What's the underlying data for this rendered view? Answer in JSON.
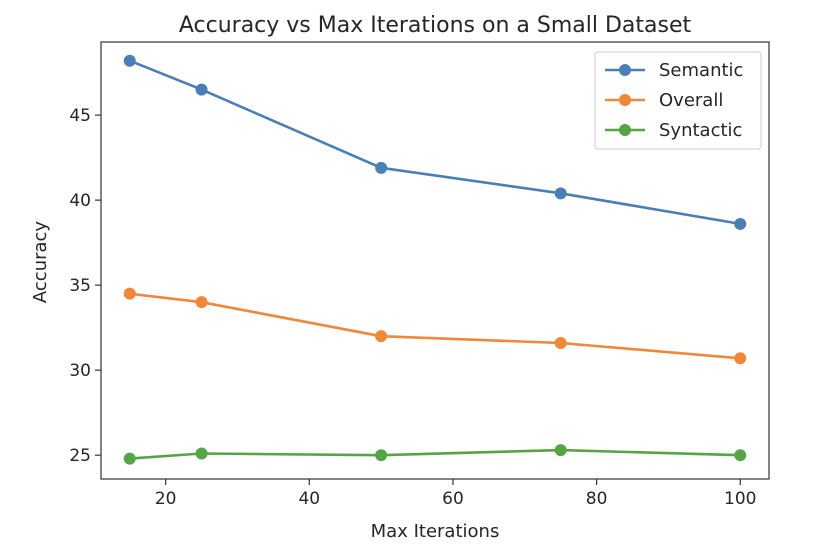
{
  "chart_data": {
    "type": "line",
    "title": "Accuracy vs Max Iterations on a Small Dataset",
    "xlabel": "Max Iterations",
    "ylabel": "Accuracy",
    "x": [
      15,
      25,
      50,
      75,
      100
    ],
    "xlim": [
      11,
      104
    ],
    "ylim": [
      23.6,
      49.3
    ],
    "xticks": [
      20,
      40,
      60,
      80,
      100
    ],
    "yticks": [
      25,
      30,
      35,
      40,
      45
    ],
    "grid": false,
    "legend_position": "top-right",
    "series": [
      {
        "name": "Semantic",
        "color": "#4a7fb5",
        "values": [
          48.2,
          46.5,
          41.9,
          40.4,
          38.6
        ]
      },
      {
        "name": "Overall",
        "color": "#f0883a",
        "values": [
          34.5,
          34.0,
          32.0,
          31.6,
          30.7
        ]
      },
      {
        "name": "Syntactic",
        "color": "#55a546",
        "values": [
          24.8,
          25.1,
          25.0,
          25.3,
          25.0
        ]
      }
    ]
  }
}
